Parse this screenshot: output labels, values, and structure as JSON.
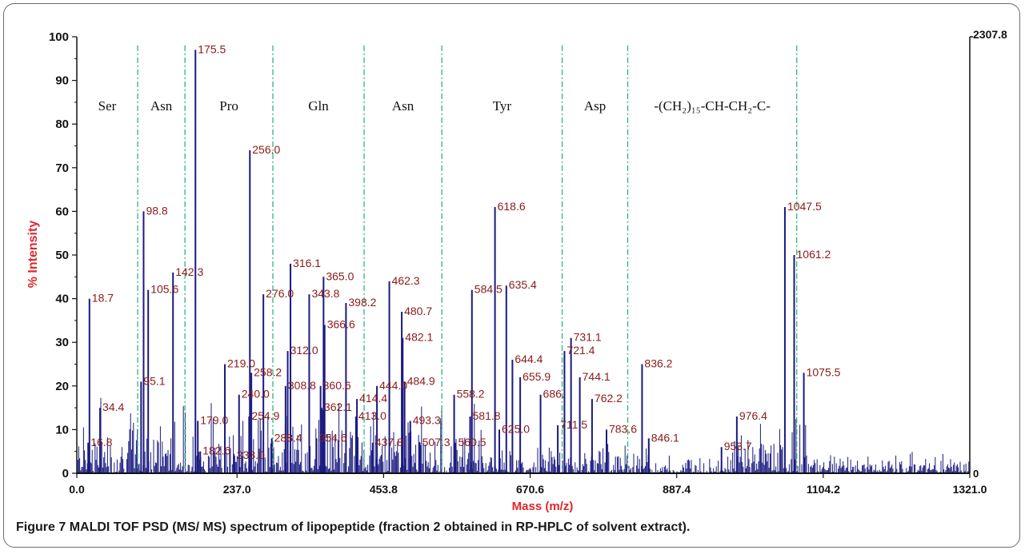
{
  "caption": {
    "figure": "Figure 7",
    "text": "MALDI TOF PSD (MS/ MS) spectrum of lipopeptide (fraction 2 obtained in RP-HPLC of solvent extract)."
  },
  "chart_data": {
    "type": "line",
    "xlabel": "Mass (m/z)",
    "ylabel": "% Intensity",
    "xlim": [
      0.0,
      1321.0
    ],
    "ylim": [
      0,
      100
    ],
    "x_ticks": [
      "0.0",
      "237.0",
      "453.8",
      "670.6",
      "887.4",
      "1104.2",
      "1321.0"
    ],
    "y_ticks": [
      "0",
      "10",
      "20",
      "30",
      "40",
      "50",
      "60",
      "70",
      "80",
      "90",
      "100"
    ],
    "right_axis": {
      "top": "2307.8",
      "bottom": "0"
    },
    "colors": {
      "spectrum": "#1a1a80",
      "labels": "#8b1a1a",
      "axis_title": "#e0262a",
      "dividers": "#2cb87a"
    },
    "regions": [
      {
        "label": "Ser",
        "x_start": 0,
        "x_end": 90
      },
      {
        "label": "Asn",
        "x_start": 90,
        "x_end": 160
      },
      {
        "label": "Pro",
        "x_start": 160,
        "x_end": 290
      },
      {
        "label": "Gln",
        "x_start": 290,
        "x_end": 425
      },
      {
        "label": "Asn",
        "x_start": 425,
        "x_end": 540
      },
      {
        "label": "Tyr",
        "x_start": 540,
        "x_end": 718
      },
      {
        "label": "Asp",
        "x_start": 718,
        "x_end": 815
      },
      {
        "label": "-(CH₂)₁₅-CH-CH₂-C-",
        "x_start": 815,
        "x_end": 1065
      }
    ],
    "dividers": [
      90,
      160,
      290,
      425,
      540,
      718,
      815,
      1065
    ],
    "peaks": [
      {
        "x": 18.7,
        "y": 40,
        "label": "18.7"
      },
      {
        "x": 16.8,
        "y": 7,
        "label": "16.8"
      },
      {
        "x": 34.4,
        "y": 15,
        "label": "34.4"
      },
      {
        "x": 98.8,
        "y": 60,
        "label": "98.8"
      },
      {
        "x": 95.1,
        "y": 21,
        "label": "95.1"
      },
      {
        "x": 105.6,
        "y": 42,
        "label": "105.6"
      },
      {
        "x": 142.3,
        "y": 46,
        "label": "142.3"
      },
      {
        "x": 175.5,
        "y": 97,
        "label": "175.5"
      },
      {
        "x": 179.0,
        "y": 12,
        "label": "179.0"
      },
      {
        "x": 182.6,
        "y": 5,
        "label": "182.6"
      },
      {
        "x": 219.0,
        "y": 25,
        "label": "219.0"
      },
      {
        "x": 233.0,
        "y": 4,
        "label": "233.0"
      },
      {
        "x": 240.0,
        "y": 18,
        "label": "240.0"
      },
      {
        "x": 254.9,
        "y": 13,
        "label": "254.9"
      },
      {
        "x": 256.0,
        "y": 74,
        "label": "256.0"
      },
      {
        "x": 258.2,
        "y": 23,
        "label": "258.2"
      },
      {
        "x": 276.0,
        "y": 41,
        "label": "276.0"
      },
      {
        "x": 288.4,
        "y": 8,
        "label": "288.4"
      },
      {
        "x": 308.8,
        "y": 20,
        "label": "308.8"
      },
      {
        "x": 312.0,
        "y": 28,
        "label": "312.0"
      },
      {
        "x": 316.1,
        "y": 48,
        "label": "316.1"
      },
      {
        "x": 343.8,
        "y": 41,
        "label": "343.8"
      },
      {
        "x": 354.6,
        "y": 8,
        "label": "354.6"
      },
      {
        "x": 360.6,
        "y": 20,
        "label": "360.6"
      },
      {
        "x": 362.1,
        "y": 15,
        "label": "362.1"
      },
      {
        "x": 365.0,
        "y": 45,
        "label": "365.0"
      },
      {
        "x": 366.6,
        "y": 34,
        "label": "366.6"
      },
      {
        "x": 398.2,
        "y": 39,
        "label": "398.2"
      },
      {
        "x": 413.0,
        "y": 13,
        "label": "413.0"
      },
      {
        "x": 414.4,
        "y": 17,
        "label": "414.4"
      },
      {
        "x": 437.8,
        "y": 7,
        "label": "437.8"
      },
      {
        "x": 444.0,
        "y": 20,
        "label": "444.0"
      },
      {
        "x": 462.3,
        "y": 44,
        "label": "462.3"
      },
      {
        "x": 480.7,
        "y": 37,
        "label": "480.7"
      },
      {
        "x": 482.1,
        "y": 31,
        "label": "482.1"
      },
      {
        "x": 484.9,
        "y": 21,
        "label": "484.9"
      },
      {
        "x": 493.3,
        "y": 12,
        "label": "493.3"
      },
      {
        "x": 507.3,
        "y": 7,
        "label": "507.3"
      },
      {
        "x": 558.2,
        "y": 18,
        "label": "558.2"
      },
      {
        "x": 560.5,
        "y": 7,
        "label": "560.5"
      },
      {
        "x": 581.8,
        "y": 13,
        "label": "581.8"
      },
      {
        "x": 584.5,
        "y": 42,
        "label": "584.5"
      },
      {
        "x": 618.6,
        "y": 61,
        "label": "618.6"
      },
      {
        "x": 625.0,
        "y": 10,
        "label": "625.0"
      },
      {
        "x": 635.4,
        "y": 43,
        "label": "635.4"
      },
      {
        "x": 644.4,
        "y": 26,
        "label": "644.4"
      },
      {
        "x": 655.9,
        "y": 22,
        "label": "655.9"
      },
      {
        "x": 686.0,
        "y": 18,
        "label": "686."
      },
      {
        "x": 711.5,
        "y": 11,
        "label": "711.5"
      },
      {
        "x": 721.4,
        "y": 28,
        "label": "721.4"
      },
      {
        "x": 731.1,
        "y": 31,
        "label": "731.1"
      },
      {
        "x": 744.1,
        "y": 22,
        "label": "744.1"
      },
      {
        "x": 762.2,
        "y": 17,
        "label": "762.2"
      },
      {
        "x": 783.6,
        "y": 10,
        "label": "783.6"
      },
      {
        "x": 836.2,
        "y": 25,
        "label": "836.2"
      },
      {
        "x": 846.1,
        "y": 8,
        "label": "846.1"
      },
      {
        "x": 953.7,
        "y": 6,
        "label": "953.7"
      },
      {
        "x": 976.4,
        "y": 13,
        "label": "976.4"
      },
      {
        "x": 1047.5,
        "y": 61,
        "label": "1047.5"
      },
      {
        "x": 1061.2,
        "y": 50,
        "label": "1061.2"
      },
      {
        "x": 1075.5,
        "y": 23,
        "label": "1075.5"
      }
    ]
  }
}
